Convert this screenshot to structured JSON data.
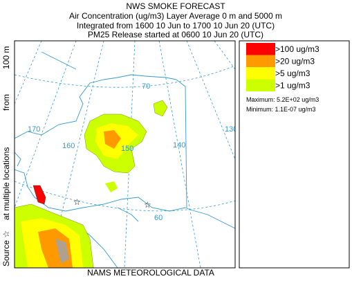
{
  "header": {
    "title": "NWS SMOKE FORECAST",
    "lines": [
      "Air Concentration (ug/m3) Layer Average    0 m and  5000 m",
      "Integrated from 1600 10 Jun to 1700 10 Jun 20 (UTC)",
      "PM25 Release started at 0600 10 Jun 20 (UTC)"
    ]
  },
  "side_label": [
    "Source ☆",
    "at multiple locations",
    "from",
    "100 m"
  ],
  "map": {
    "labels": [
      "170",
      "160",
      "150",
      "140",
      "130",
      "70",
      "60"
    ]
  },
  "legend": {
    "entries": [
      {
        "label": ">100 ug/m3",
        "color": "#ff0000"
      },
      {
        "label": ">20 ug/m3",
        "color": "#ff9900"
      },
      {
        "label": ">5 ug/m3",
        "color": "#ffff00"
      },
      {
        "label": ">1 ug/m3",
        "color": "#ccff00"
      }
    ],
    "maximum": "Maximum: 5.2E+02 ug/m3",
    "minimum": "Minimum: 1.1E-07 ug/m3"
  },
  "footer": "NAMS METEOROLOGICAL DATA"
}
